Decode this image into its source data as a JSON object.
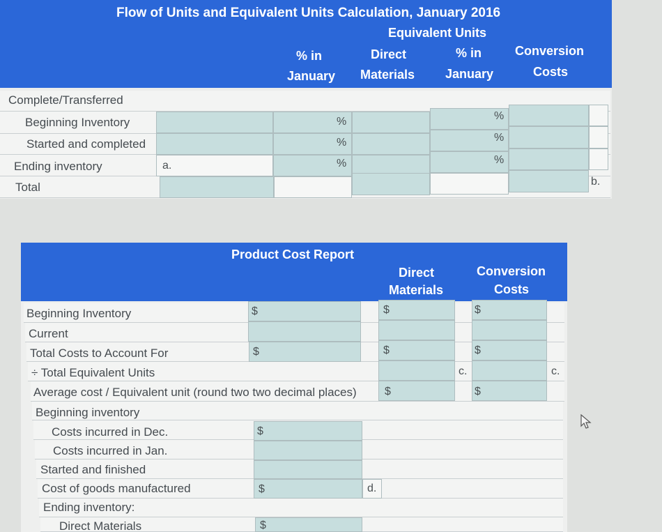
{
  "flow_table": {
    "title": "Flow of Units and Equivalent Units Calculation, January 2016",
    "equivalent_units_label": "Equivalent Units",
    "col_pct_january_1": [
      "% in",
      "January"
    ],
    "col_direct_materials": [
      "Direct",
      "Materials"
    ],
    "col_pct_january_2": [
      "% in",
      "January"
    ],
    "col_conversion_costs": [
      "Conversion",
      "Costs"
    ],
    "rows": {
      "complete_transferred": "Complete/Transferred",
      "beginning_inventory": "Beginning Inventory",
      "started_completed": "Started and completed",
      "ending_inventory": "Ending inventory",
      "total": "Total"
    },
    "marks": {
      "percent": "%",
      "a": "a.",
      "b": "b."
    }
  },
  "cost_report": {
    "title": "Product Cost Report",
    "col_direct_materials": [
      "Direct",
      "Materials"
    ],
    "col_conversion_costs": [
      "Conversion",
      "Costs"
    ],
    "rows": {
      "beginning_inventory": "Beginning Inventory",
      "current": "Current",
      "total_costs": "Total Costs to Account For",
      "total_eq_units": "÷ Total Equivalent Units",
      "average_cost": "Average cost / Equivalent unit (round two two decimal places)",
      "beginning_inventory_2": "Beginning inventory",
      "costs_dec": "Costs incurred in Dec.",
      "costs_jan": "Costs incurred in Jan.",
      "started_finished": "Started and finished",
      "cogm": "Cost of goods manufactured",
      "ending_inventory": "Ending inventory:",
      "direct_materials": "Direct Materials"
    },
    "marks": {
      "dollar": "$",
      "c": "c.",
      "d": "d."
    }
  }
}
